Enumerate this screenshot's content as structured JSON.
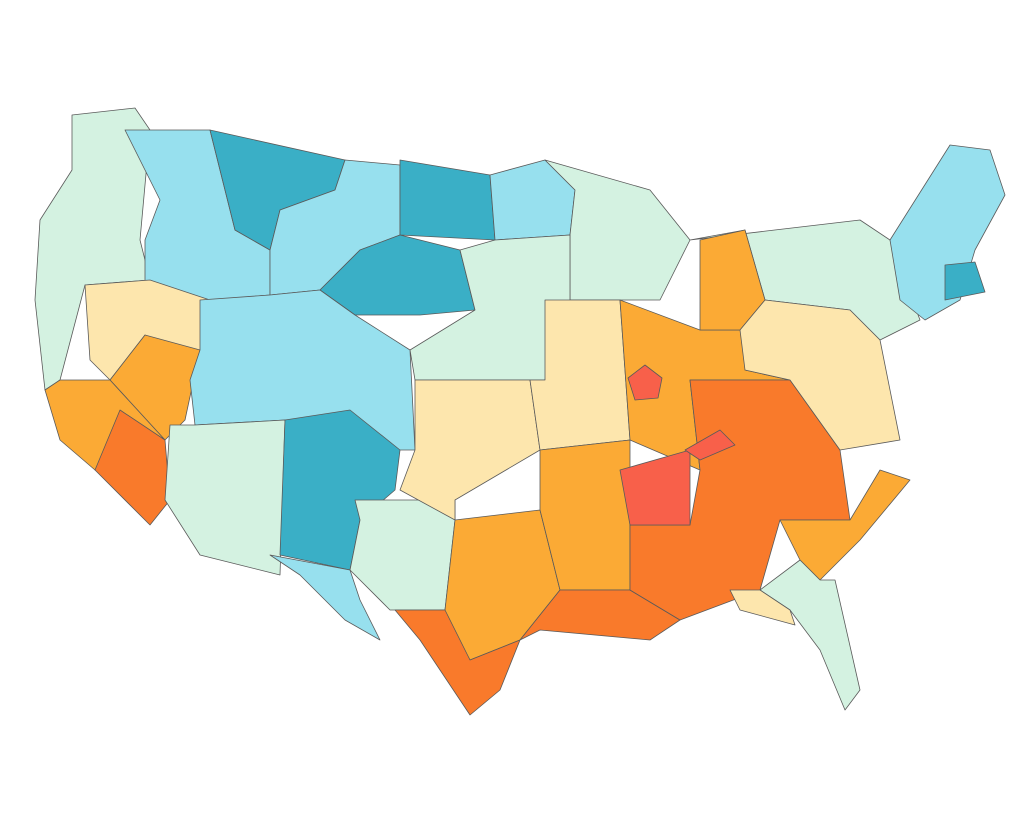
{
  "map": {
    "colors": [
      "#d4f2e1",
      "#97e0ee",
      "#3aafc6",
      "#fde6ad",
      "#fbaa35",
      "#f97a2b",
      "#f8604a"
    ]
  }
}
